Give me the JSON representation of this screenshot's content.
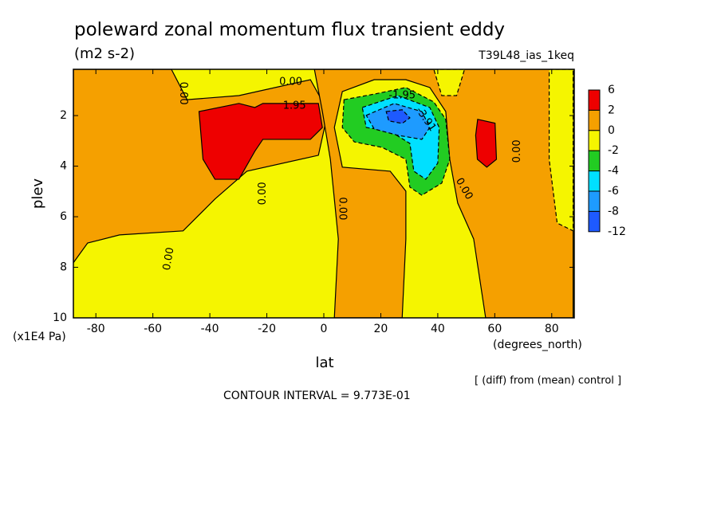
{
  "chart_data": {
    "type": "contour",
    "title": "poleward zonal momentum flux transient eddy",
    "subtitle": "(m2 s-2)",
    "run_label": "T39L48_ias_1keq",
    "x_label": "lat",
    "x_units": "(degrees_north)",
    "y_label": "plev",
    "y_units": "(x1E4 Pa)",
    "note": "[ (diff) from (mean) control ]",
    "contour_interval": "CONTOUR INTERVAL = 9.773E-01",
    "xlim": [
      -87.9,
      87.9
    ],
    "ylim": [
      10,
      0.17
    ],
    "xticks": [
      -80,
      -60,
      -40,
      -20,
      0,
      20,
      40,
      60,
      80
    ],
    "yticks": [
      2,
      4,
      6,
      8,
      10
    ],
    "colorbar": {
      "levels": [
        6,
        2,
        0,
        -2,
        -4,
        -6,
        -8,
        -12
      ],
      "colors": [
        "#ee0000",
        "#f5a000",
        "#f5f500",
        "#22cc22",
        "#00e0ff",
        "#1e9bff",
        "#1e5aff"
      ]
    },
    "regions": [
      {
        "level": -2,
        "points": [
          [
            -87.9,
            0.17
          ],
          [
            87.9,
            0.17
          ],
          [
            87.9,
            10
          ],
          [
            -87.9,
            10
          ]
        ]
      },
      {
        "level": 0,
        "points": [
          [
            -87.9,
            0.17
          ],
          [
            -53.5,
            0.17
          ],
          [
            -48,
            1.37
          ],
          [
            -29.8,
            1.21
          ],
          [
            -4.7,
            0.58
          ],
          [
            1.5,
            1.84
          ],
          [
            -1.9,
            3.57
          ],
          [
            -27,
            4.2
          ],
          [
            -38.2,
            5.3
          ],
          [
            -49.4,
            6.56
          ],
          [
            -71.7,
            6.72
          ],
          [
            -82.9,
            7.04
          ],
          [
            -87.9,
            7.82
          ]
        ]
      },
      {
        "level": 0,
        "points": [
          [
            -3.3,
            0.17
          ],
          [
            87.5,
            0.17
          ],
          [
            87.5,
            10
          ],
          [
            56.8,
            10
          ],
          [
            52.6,
            6.88
          ],
          [
            47,
            5.46
          ],
          [
            44.2,
            3.73
          ],
          [
            42.8,
            1.84
          ],
          [
            37.2,
            0.89
          ],
          [
            28.8,
            0.58
          ],
          [
            17.7,
            0.58
          ],
          [
            6.5,
            1.05
          ],
          [
            3.7,
            2.47
          ],
          [
            6.5,
            4.04
          ],
          [
            23.3,
            4.2
          ],
          [
            28.8,
            4.99
          ],
          [
            28.8,
            6.88
          ],
          [
            27.5,
            10
          ],
          [
            3.7,
            10
          ],
          [
            5.1,
            6.88
          ],
          [
            2.3,
            3.73
          ],
          [
            -0.5,
            1.84
          ]
        ]
      },
      {
        "level": -2,
        "points": [
          [
            79.1,
            0.17
          ],
          [
            87.5,
            0.17
          ],
          [
            87.5,
            6.56
          ],
          [
            81.9,
            6.25
          ],
          [
            79.1,
            3.73
          ]
        ]
      },
      {
        "level": -2,
        "points": [
          [
            38.6,
            0.17
          ],
          [
            49.4,
            0.17
          ],
          [
            46.6,
            1.21
          ],
          [
            41.4,
            1.21
          ]
        ]
      },
      {
        "level": 2,
        "points": [
          [
            -43.8,
            1.84
          ],
          [
            -29.8,
            1.52
          ],
          [
            -24.2,
            1.68
          ],
          [
            -21.4,
            1.52
          ],
          [
            -1.9,
            1.52
          ],
          [
            -0.5,
            2.47
          ],
          [
            -4.7,
            2.94
          ],
          [
            -21.4,
            2.94
          ],
          [
            -24.2,
            3.41
          ],
          [
            -29.8,
            4.52
          ],
          [
            -38.2,
            4.52
          ],
          [
            -42.4,
            3.73
          ]
        ]
      },
      {
        "level": 2,
        "points": [
          [
            54,
            2.15
          ],
          [
            60.1,
            2.3
          ],
          [
            60.6,
            3.73
          ],
          [
            57.2,
            4.04
          ],
          [
            53.9,
            3.73
          ],
          [
            53.3,
            2.78
          ]
        ]
      },
      {
        "level": -4,
        "points": [
          [
            7.1,
            1.37
          ],
          [
            17.7,
            1.15
          ],
          [
            28.8,
            0.89
          ],
          [
            38.6,
            1.46
          ],
          [
            42.8,
            2.15
          ],
          [
            44.2,
            3.73
          ],
          [
            41.4,
            4.67
          ],
          [
            34.4,
            5.15
          ],
          [
            30.2,
            4.83
          ],
          [
            28.8,
            3.73
          ],
          [
            20.5,
            3.26
          ],
          [
            10.7,
            3.04
          ],
          [
            6.5,
            2.47
          ]
        ]
      },
      {
        "level": -6,
        "points": [
          [
            13.5,
            1.68
          ],
          [
            26,
            1.21
          ],
          [
            37.2,
            1.68
          ],
          [
            40.5,
            2.47
          ],
          [
            40,
            3.88
          ],
          [
            35.8,
            4.52
          ],
          [
            31.6,
            4.2
          ],
          [
            30.2,
            3.1
          ],
          [
            23.3,
            2.62
          ],
          [
            14.9,
            2.47
          ]
        ]
      },
      {
        "level": -8,
        "points": [
          [
            14.9,
            1.99
          ],
          [
            24.7,
            1.52
          ],
          [
            34.4,
            1.84
          ],
          [
            37.2,
            2.47
          ],
          [
            34.4,
            2.94
          ],
          [
            26,
            2.78
          ],
          [
            17.7,
            2.53
          ]
        ]
      },
      {
        "level": -12,
        "points": [
          [
            21.9,
            1.84
          ],
          [
            27.5,
            1.77
          ],
          [
            30.2,
            2.09
          ],
          [
            27.5,
            2.31
          ],
          [
            22.8,
            2.21
          ]
        ]
      }
    ],
    "contour_labels": [
      {
        "value": 0,
        "label": "0.00",
        "at": [
          -11.6,
          0.67
        ]
      },
      {
        "value": 1.95,
        "label": "1.95",
        "at": [
          -10.3,
          1.62
        ]
      },
      {
        "value": 0,
        "label": "0.00",
        "at": [
          -49.4,
          1.12
        ]
      },
      {
        "value": 0,
        "label": "0.00",
        "at": [
          -21.4,
          5.08
        ]
      },
      {
        "value": 0,
        "label": "0.00",
        "at": [
          6.5,
          5.68
        ]
      },
      {
        "value": 0,
        "label": "0.00",
        "at": [
          -54.4,
          7.67
        ]
      },
      {
        "value": -1.95,
        "label": "-1.95",
        "at": [
          27.5,
          1.21
        ]
      },
      {
        "value": -3.91,
        "label": "-3.91",
        "at": [
          35.8,
          2.15
        ]
      },
      {
        "value": 0,
        "label": "0.00",
        "at": [
          49.2,
          4.9
        ]
      },
      {
        "value": 0,
        "label": "0.00",
        "at": [
          67.9,
          3.41
        ]
      }
    ]
  }
}
